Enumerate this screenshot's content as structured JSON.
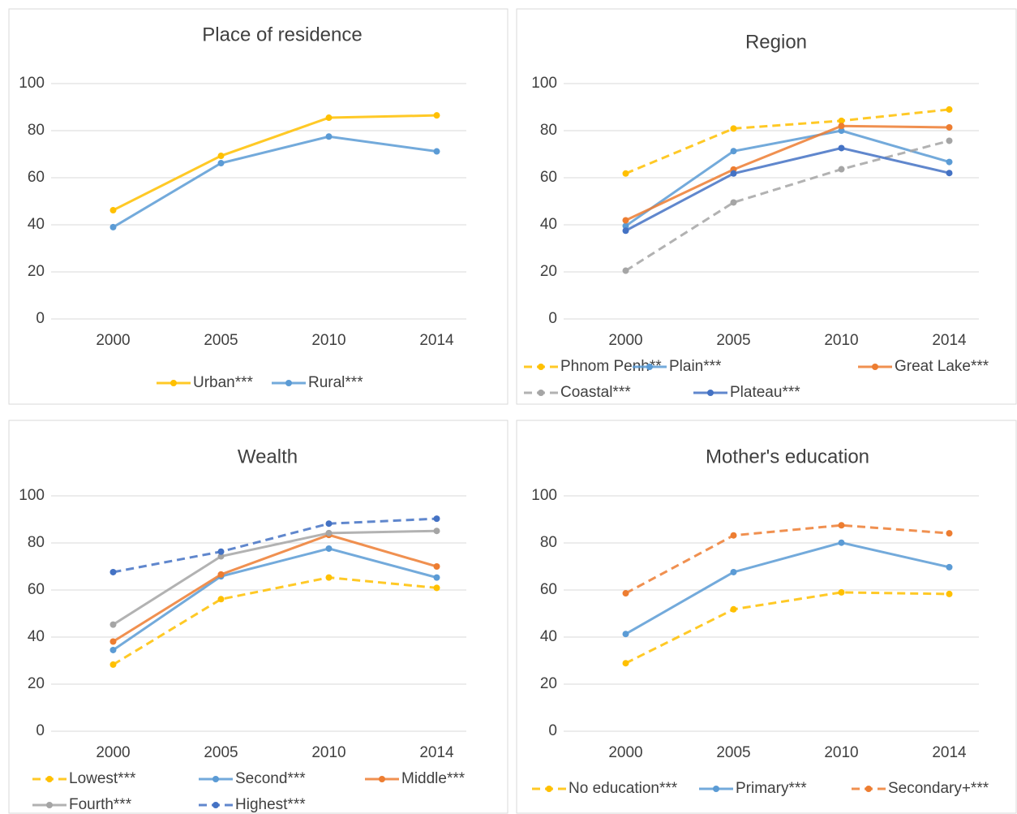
{
  "chart_data": [
    {
      "type": "line",
      "title": "Place of residence",
      "categories": [
        "2000",
        "2005",
        "2010",
        "2014"
      ],
      "ylim": [
        0,
        100
      ],
      "yticks": [
        0,
        20,
        40,
        60,
        80,
        100
      ],
      "grid": true,
      "series": [
        {
          "name": "Urban***",
          "color": "#ffc000",
          "linestyle": "solid",
          "values": [
            46.2,
            69.3,
            85.5,
            86.5
          ]
        },
        {
          "name": "Rural***",
          "color": "#5b9bd5",
          "linestyle": "solid",
          "values": [
            39,
            66.2,
            77.5,
            71.2
          ]
        }
      ]
    },
    {
      "type": "line",
      "title": "Region",
      "categories": [
        "2000",
        "2005",
        "2010",
        "2014"
      ],
      "ylim": [
        0,
        100
      ],
      "yticks": [
        0,
        20,
        40,
        60,
        80,
        100
      ],
      "grid": true,
      "series": [
        {
          "name": "Phnom Penh**",
          "color": "#ffc000",
          "linestyle": "dashed",
          "values": [
            61.8,
            80.9,
            84.2,
            89
          ]
        },
        {
          "name": "Plain***",
          "color": "#5b9bd5",
          "linestyle": "solid",
          "values": [
            39.5,
            71.3,
            80,
            66.7
          ]
        },
        {
          "name": "Great Lake***",
          "color": "#ed7d31",
          "linestyle": "solid",
          "values": [
            41.9,
            63.5,
            82,
            81.4
          ]
        },
        {
          "name": "Coastal***",
          "color": "#a5a5a5",
          "linestyle": "dashed",
          "values": [
            20.5,
            49.5,
            63.6,
            75.7
          ]
        },
        {
          "name": "Plateau***",
          "color": "#4472c4",
          "linestyle": "solid",
          "values": [
            37.5,
            61.8,
            72.6,
            62
          ]
        }
      ]
    },
    {
      "type": "line",
      "title": "Wealth",
      "categories": [
        "2000",
        "2005",
        "2010",
        "2014"
      ],
      "ylim": [
        0,
        100
      ],
      "yticks": [
        0,
        20,
        40,
        60,
        80,
        100
      ],
      "grid": true,
      "series": [
        {
          "name": "Lowest***",
          "color": "#ffc000",
          "linestyle": "dashed",
          "values": [
            28.3,
            56.1,
            65.3,
            60.9
          ]
        },
        {
          "name": "Second***",
          "color": "#5b9bd5",
          "linestyle": "solid",
          "values": [
            34.5,
            65.8,
            77.6,
            65.3
          ]
        },
        {
          "name": "Middle***",
          "color": "#ed7d31",
          "linestyle": "solid",
          "values": [
            38.1,
            66.6,
            83.4,
            70
          ]
        },
        {
          "name": "Fourth***",
          "color": "#a5a5a5",
          "linestyle": "solid",
          "values": [
            45.3,
            74.3,
            84.2,
            85.1
          ]
        },
        {
          "name": "Highest***",
          "color": "#4472c4",
          "linestyle": "dashed",
          "values": [
            67.6,
            76.3,
            88.2,
            90.3
          ]
        }
      ]
    },
    {
      "type": "line",
      "title": "Mother's education",
      "categories": [
        "2000",
        "2005",
        "2010",
        "2014"
      ],
      "ylim": [
        0,
        100
      ],
      "yticks": [
        0,
        20,
        40,
        60,
        80,
        100
      ],
      "grid": true,
      "series": [
        {
          "name": "No education***",
          "color": "#ffc000",
          "linestyle": "dashed",
          "values": [
            28.9,
            51.8,
            59,
            58.3
          ]
        },
        {
          "name": "Primary***",
          "color": "#5b9bd5",
          "linestyle": "solid",
          "values": [
            41.3,
            67.6,
            80.1,
            69.7
          ]
        },
        {
          "name": "Secondary+***",
          "color": "#ed7d31",
          "linestyle": "dashed",
          "values": [
            58.6,
            83.2,
            87.5,
            84.1
          ]
        }
      ]
    }
  ]
}
